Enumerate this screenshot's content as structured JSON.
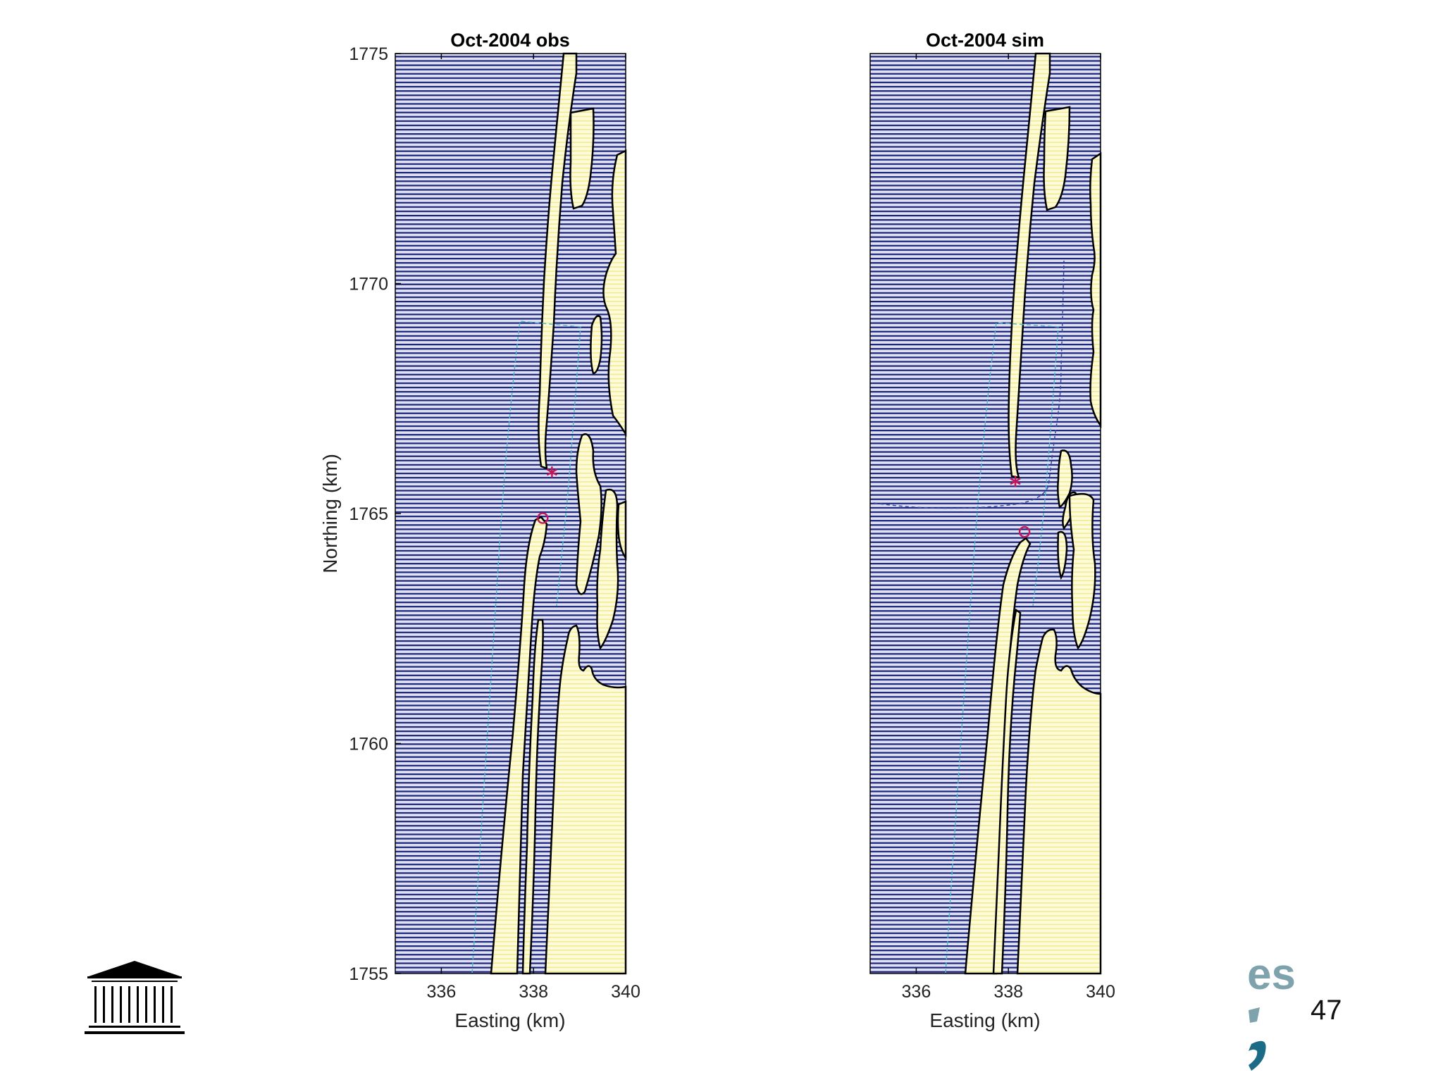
{
  "chart_data": [
    {
      "type": "map",
      "title": "Oct-2004 obs",
      "xlabel": "Easting (km)",
      "ylabel": "Northing (km)",
      "xlim": [
        335,
        340
      ],
      "ylim": [
        1755,
        1775
      ],
      "xticks": [
        "336",
        "338",
        "340"
      ],
      "yticks": [
        "1755",
        "1760",
        "1765",
        "1770",
        "1775"
      ],
      "markers": [
        {
          "symbol": "asterisk",
          "x": 338.4,
          "y": 1765.9
        },
        {
          "symbol": "circle",
          "x": 338.2,
          "y": 1764.9
        }
      ],
      "colors": {
        "water": "#1a237e",
        "land": "#fbf8c4",
        "coast": "#000000",
        "marker": "#c2185b",
        "track": "#4fb8d0"
      }
    },
    {
      "type": "map",
      "title": "Oct-2004 sim",
      "xlabel": "Easting (km)",
      "ylabel": "",
      "xlim": [
        335,
        340
      ],
      "ylim": [
        1755,
        1775
      ],
      "xticks": [
        "336",
        "338",
        "340"
      ],
      "yticks": [],
      "markers": [
        {
          "symbol": "asterisk",
          "x": 338.15,
          "y": 1765.7
        },
        {
          "symbol": "circle",
          "x": 338.35,
          "y": 1764.6
        }
      ],
      "colors": {
        "water": "#1a237e",
        "land": "#fbf8c4",
        "coast": "#000000",
        "marker": "#c2185b",
        "track": "#4fb8d0"
      }
    }
  ],
  "logos": {
    "left": "UNESCO",
    "right_fragment": "es"
  },
  "slide_number": "47"
}
